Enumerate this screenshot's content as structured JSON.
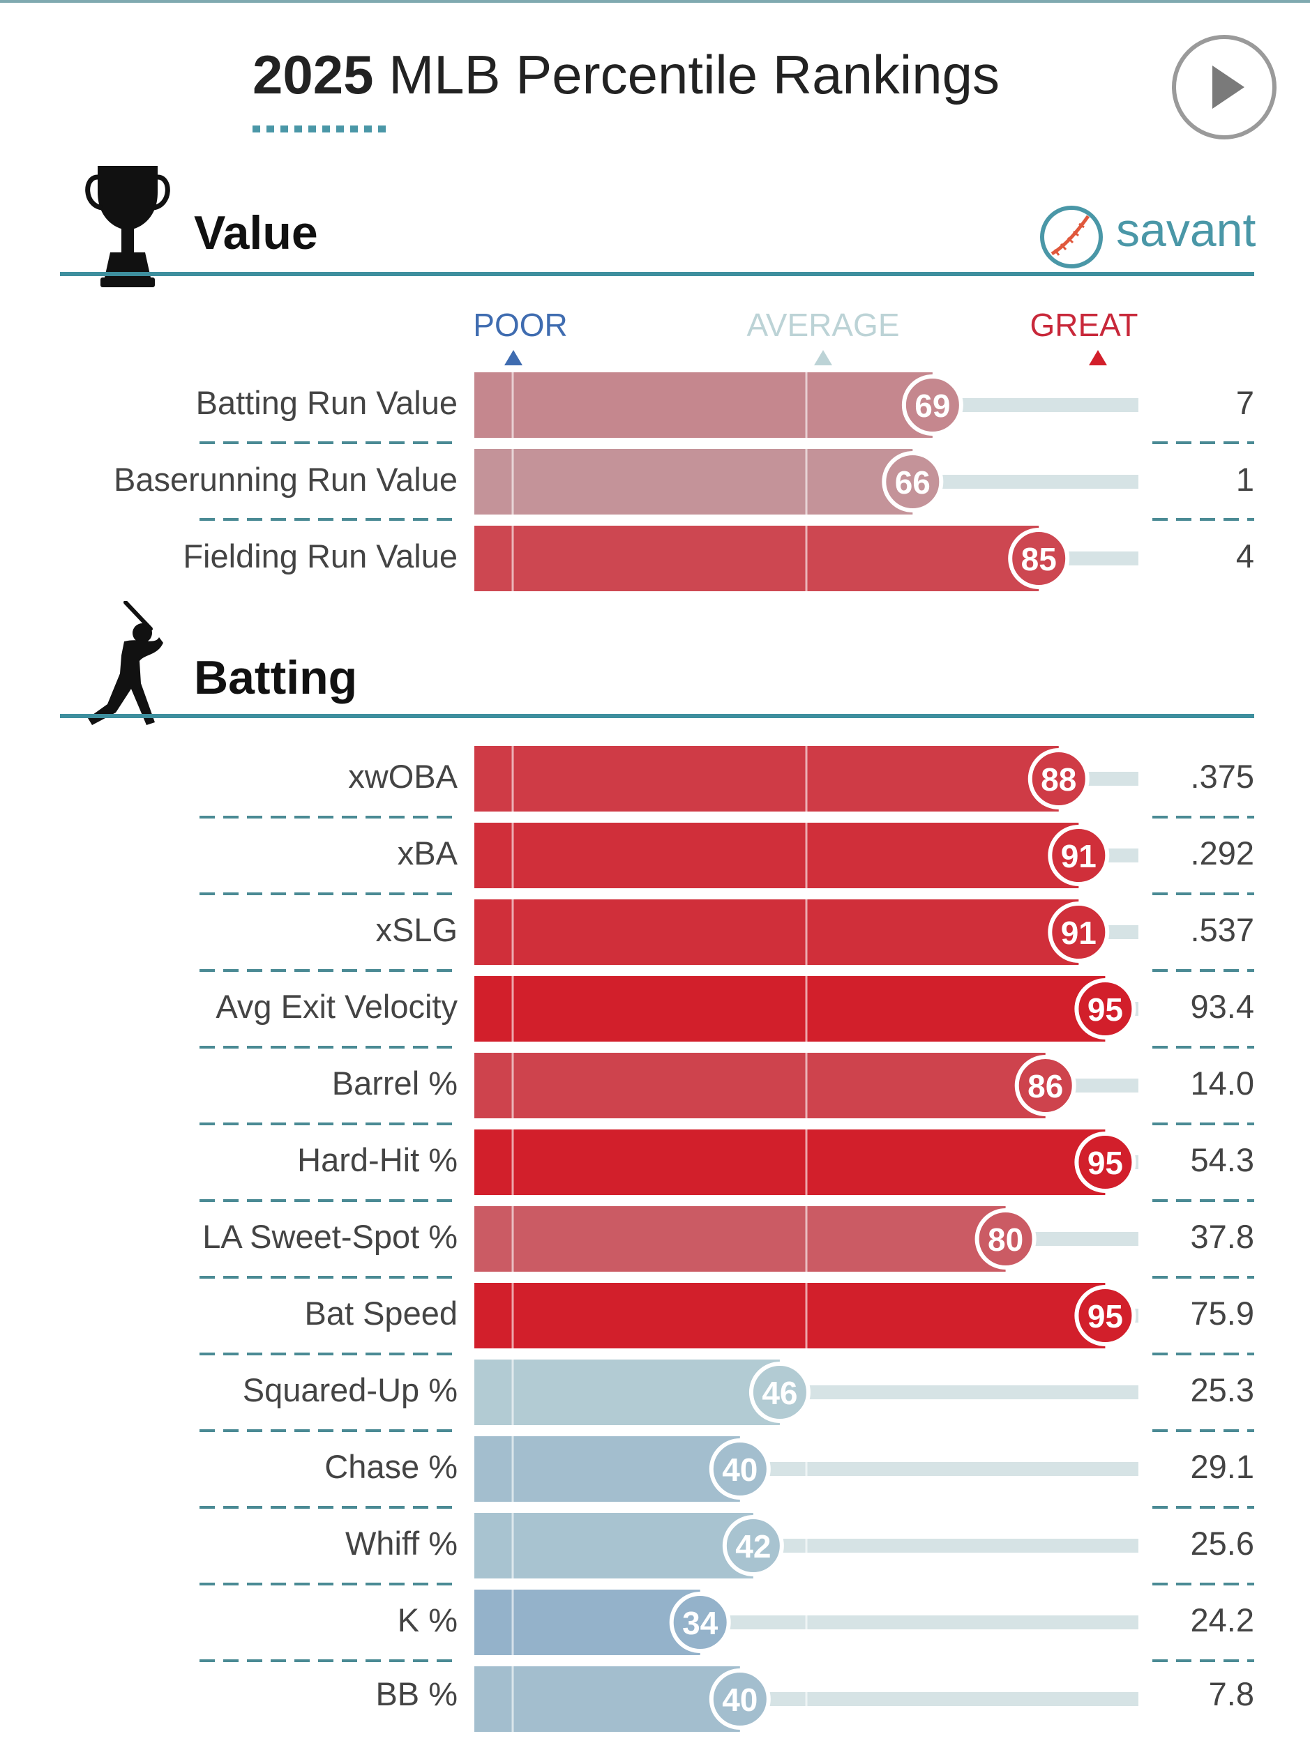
{
  "header": {
    "title_year": "2025",
    "title_rest": " MLB Percentile Rankings"
  },
  "logo_text": "savant",
  "scale": {
    "poor": "POOR",
    "average": "AVERAGE",
    "great": "GREAT"
  },
  "colors": {
    "great": "#d21f2b",
    "average": "#bcd3d6",
    "poor": "#3f6cb0",
    "accent": "#3e8f9e"
  },
  "icons": {
    "play": "play-icon",
    "value": "trophy-icon",
    "batting": "batter-icon",
    "logo": "baseball-icon"
  },
  "chart_data": {
    "type": "bar",
    "orientation": "horizontal",
    "xlim": [
      0,
      100
    ],
    "sections": [
      {
        "title": "Value",
        "metrics": [
          {
            "label": "Batting Run Value",
            "percentile": 69,
            "value": "7"
          },
          {
            "label": "Baserunning Run Value",
            "percentile": 66,
            "value": "1"
          },
          {
            "label": "Fielding Run Value",
            "percentile": 85,
            "value": "4"
          }
        ]
      },
      {
        "title": "Batting",
        "metrics": [
          {
            "label": "xwOBA",
            "percentile": 88,
            "value": ".375"
          },
          {
            "label": "xBA",
            "percentile": 91,
            "value": ".292"
          },
          {
            "label": "xSLG",
            "percentile": 91,
            "value": ".537"
          },
          {
            "label": "Avg Exit Velocity",
            "percentile": 95,
            "value": "93.4"
          },
          {
            "label": "Barrel %",
            "percentile": 86,
            "value": "14.0"
          },
          {
            "label": "Hard-Hit %",
            "percentile": 95,
            "value": "54.3"
          },
          {
            "label": "LA Sweet-Spot %",
            "percentile": 80,
            "value": "37.8"
          },
          {
            "label": "Bat Speed",
            "percentile": 95,
            "value": "75.9"
          },
          {
            "label": "Squared-Up %",
            "percentile": 46,
            "value": "25.3"
          },
          {
            "label": "Chase %",
            "percentile": 40,
            "value": "29.1"
          },
          {
            "label": "Whiff %",
            "percentile": 42,
            "value": "25.6"
          },
          {
            "label": "K %",
            "percentile": 34,
            "value": "24.2"
          },
          {
            "label": "BB %",
            "percentile": 40,
            "value": "7.8"
          }
        ]
      }
    ]
  }
}
